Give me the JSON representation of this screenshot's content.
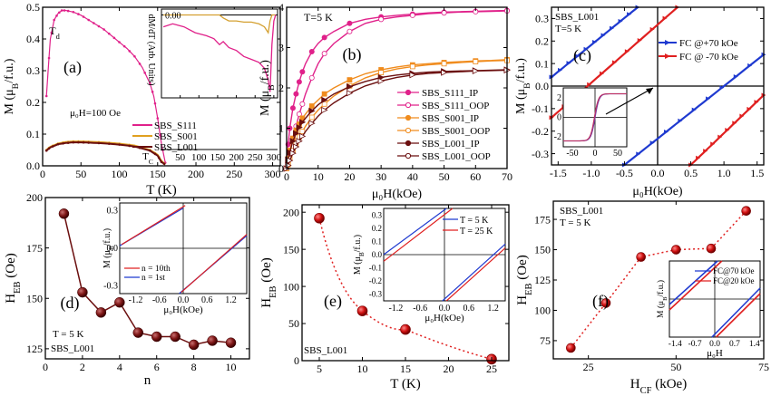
{
  "chart_data": [
    {
      "type": "line",
      "panel_label": "(a)",
      "xlabel": "T (K)",
      "ylabel": "M (μ_B/f.u.)",
      "xlim": [
        0,
        310
      ],
      "ylim": [
        0,
        0.5
      ],
      "xticks": [
        "0",
        "50",
        "100",
        "150",
        "200",
        "250",
        "300"
      ],
      "yticks": [
        "0.0",
        "0.1",
        "0.2",
        "0.3",
        "0.4",
        "0.5"
      ],
      "annotations": [
        "T_d",
        "μ₀H=100 Oe",
        "T_C"
      ],
      "legend": [
        "SBS_S111",
        "SBS_S001",
        "SBS_L001"
      ],
      "series": [
        {
          "name": "SBS_S111",
          "color": "#e0218a",
          "x": [
            5,
            10,
            15,
            20,
            25,
            30,
            40,
            50,
            60,
            70,
            80,
            90,
            100,
            110,
            120,
            130,
            140,
            145,
            150,
            155,
            160
          ],
          "y": [
            0.22,
            0.4,
            0.46,
            0.48,
            0.49,
            0.49,
            0.485,
            0.475,
            0.46,
            0.445,
            0.43,
            0.41,
            0.39,
            0.37,
            0.345,
            0.31,
            0.26,
            0.22,
            0.15,
            0.07,
            0.01
          ]
        },
        {
          "name": "SBS_S001",
          "color": "#e0a020",
          "x": [
            5,
            10,
            20,
            30,
            40,
            50,
            60,
            80,
            100,
            120,
            140,
            150,
            155,
            160
          ],
          "y": [
            0.05,
            0.06,
            0.07,
            0.075,
            0.077,
            0.077,
            0.076,
            0.074,
            0.07,
            0.064,
            0.05,
            0.035,
            0.015,
            0.005
          ]
        },
        {
          "name": "SBS_L001",
          "color": "#6b0f0f",
          "x": [
            5,
            10,
            20,
            30,
            40,
            50,
            60,
            80,
            100,
            120,
            140,
            150,
            155,
            160
          ],
          "y": [
            0.048,
            0.058,
            0.068,
            0.072,
            0.074,
            0.074,
            0.073,
            0.071,
            0.067,
            0.061,
            0.048,
            0.032,
            0.012,
            0.004
          ]
        }
      ],
      "inset": {
        "ylabel": "dM/dT (Arb. Units)",
        "xticks": [
          "50",
          "100",
          "150",
          "200",
          "250",
          "300"
        ],
        "yticks": [
          "0.00"
        ],
        "series_x": [
          5,
          30,
          60,
          90,
          120,
          140,
          155,
          165,
          180,
          200,
          220,
          240,
          260,
          275,
          285,
          290,
          295,
          300,
          305
        ],
        "S111": [
          -0.2,
          -0.15,
          -0.2,
          -0.3,
          -0.35,
          -0.4,
          -0.5,
          -0.45,
          -0.55,
          -0.6,
          -0.7,
          -0.75,
          -0.8,
          -0.9,
          -1.1,
          -1.3,
          -0.5,
          -0.1,
          0
        ],
        "others": [
          0,
          0,
          0,
          0,
          0,
          0,
          0,
          -0.05,
          -0.1,
          -0.1,
          -0.12,
          -0.12,
          -0.15,
          -0.2,
          -0.3,
          -0.1,
          0,
          0,
          0
        ]
      }
    },
    {
      "type": "line",
      "panel_label": "(b)",
      "annotation": "T=5 K",
      "xlabel": "μ₀H(kOe)",
      "ylabel": "M (μ_B/f.u.)",
      "xlim": [
        0,
        70
      ],
      "ylim": [
        0,
        4
      ],
      "xticks": [
        "0",
        "10",
        "20",
        "30",
        "40",
        "50",
        "60",
        "70"
      ],
      "yticks": [
        "0",
        "1",
        "2",
        "3",
        "4"
      ],
      "x": [
        0,
        0.5,
        1,
        2,
        3,
        4,
        5,
        6,
        8,
        10,
        12,
        15,
        20,
        25,
        30,
        35,
        40,
        45,
        50,
        55,
        60,
        65,
        70
      ],
      "series": [
        {
          "name": "SBS_S111_IP",
          "color": "#e0218a",
          "filled": true,
          "y": [
            0,
            0.6,
            1.0,
            1.5,
            1.85,
            2.15,
            2.4,
            2.6,
            2.9,
            3.1,
            3.25,
            3.4,
            3.6,
            3.7,
            3.76,
            3.8,
            3.83,
            3.86,
            3.88,
            3.89,
            3.9,
            3.91,
            3.92
          ]
        },
        {
          "name": "SBS_S111_OOP",
          "color": "#e0218a",
          "filled": false,
          "y": [
            0,
            0.2,
            0.4,
            0.75,
            1.05,
            1.35,
            1.6,
            1.85,
            2.25,
            2.6,
            2.85,
            3.1,
            3.4,
            3.6,
            3.7,
            3.76,
            3.8,
            3.84,
            3.86,
            3.88,
            3.89,
            3.9,
            3.91
          ]
        },
        {
          "name": "SBS_S001_IP",
          "color": "#f08c1e",
          "filled": true,
          "y": [
            0,
            0.25,
            0.45,
            0.75,
            0.95,
            1.1,
            1.25,
            1.35,
            1.55,
            1.7,
            1.85,
            2.0,
            2.2,
            2.35,
            2.45,
            2.52,
            2.57,
            2.6,
            2.63,
            2.65,
            2.67,
            2.68,
            2.7
          ]
        },
        {
          "name": "SBS_S001_OOP",
          "color": "#f08c1e",
          "filled": false,
          "y": [
            0,
            0.1,
            0.25,
            0.45,
            0.62,
            0.78,
            0.92,
            1.05,
            1.27,
            1.45,
            1.6,
            1.8,
            2.05,
            2.25,
            2.38,
            2.47,
            2.53,
            2.57,
            2.6,
            2.63,
            2.65,
            2.67,
            2.68
          ]
        },
        {
          "name": "SBS_L001_IP",
          "color": "#6b0f0f",
          "filled": true,
          "y": [
            0,
            0.22,
            0.4,
            0.68,
            0.87,
            1.02,
            1.15,
            1.25,
            1.43,
            1.58,
            1.7,
            1.85,
            2.03,
            2.16,
            2.26,
            2.32,
            2.36,
            2.39,
            2.41,
            2.42,
            2.43,
            2.44,
            2.45
          ]
        },
        {
          "name": "SBS_L001_OOP",
          "color": "#6b0f0f",
          "filled": false,
          "y": [
            0,
            0.08,
            0.2,
            0.38,
            0.54,
            0.68,
            0.8,
            0.92,
            1.12,
            1.3,
            1.45,
            1.63,
            1.87,
            2.05,
            2.17,
            2.26,
            2.32,
            2.36,
            2.38,
            2.4,
            2.42,
            2.43,
            2.44
          ]
        }
      ]
    },
    {
      "type": "line",
      "panel_label": "(c)",
      "annotation": [
        "SBS_L001",
        "T=5 K"
      ],
      "xlabel": "μ₀H(kOe)",
      "ylabel": "M (μ_B/f.u.)",
      "xlim": [
        -1.6,
        1.6
      ],
      "ylim": [
        -0.35,
        0.35
      ],
      "xticks": [
        "-1.5",
        "-1.0",
        "-0.5",
        "0.0",
        "0.5",
        "1.0",
        "1.5"
      ],
      "yticks": [
        "-0.3",
        "-0.2",
        "-0.1",
        "0.0",
        "0.1",
        "0.2",
        "0.3"
      ],
      "legend": [
        "FC @+70 kOe",
        "FC @ -70 kOe"
      ],
      "series": [
        {
          "name": "FC @+70 kOe",
          "color": "#1f3ad0",
          "branches": [
            {
              "x": [
                -1.6,
                -0.3
              ],
              "y": [
                0.04,
                0.35
              ]
            },
            {
              "x": [
                -0.5,
                1.6
              ],
              "y": [
                -0.35,
                0.14
              ]
            }
          ]
        },
        {
          "name": "FC @ -70 kOe",
          "color": "#e02020",
          "branches": [
            {
              "x": [
                -1.6,
                0.3
              ],
              "y": [
                -0.14,
                0.35
              ]
            },
            {
              "x": [
                0.5,
                1.6
              ],
              "y": [
                -0.35,
                -0.04
              ]
            }
          ]
        }
      ],
      "inset": {
        "xticks": [
          "-50",
          "0",
          "50"
        ],
        "yticks": [
          "-2",
          "0",
          "2"
        ]
      }
    },
    {
      "type": "scatter",
      "panel_label": "(d)",
      "annotation": [
        "T = 5 K",
        "SBS_L001"
      ],
      "xlabel": "n",
      "ylabel": "H_EB (Oe)",
      "xlim": [
        0,
        11
      ],
      "ylim": [
        120,
        200
      ],
      "xticks": [
        "0",
        "2",
        "4",
        "6",
        "8",
        "10"
      ],
      "yticks": [
        "125",
        "150",
        "175",
        "200"
      ],
      "x": [
        1,
        2,
        3,
        4,
        5,
        6,
        7,
        8,
        9,
        10
      ],
      "y": [
        192,
        153,
        143,
        148,
        133,
        131,
        131,
        127,
        129,
        128
      ],
      "inset": {
        "xlabel": "μ₀H(kOe)",
        "ylabel": "M (μ_B/f.u.)",
        "xticks": [
          "-1.2",
          "-0.6",
          "0.0",
          "0.6",
          "1.2"
        ],
        "yticks": [
          "-0.3",
          "0.0",
          "0.3"
        ],
        "legend": [
          "n = 10th",
          "n = 1st"
        ]
      }
    },
    {
      "type": "scatter",
      "panel_label": "(e)",
      "annotation": "SBS_L001",
      "xlabel": "T (K)",
      "ylabel": "H_EB (Oe)",
      "xlim": [
        3,
        27
      ],
      "ylim": [
        0,
        210
      ],
      "xticks": [
        "5",
        "10",
        "15",
        "20",
        "25"
      ],
      "yticks": [
        "0",
        "50",
        "100",
        "150",
        "200"
      ],
      "x": [
        5,
        10,
        15,
        25
      ],
      "y": [
        192,
        67,
        42,
        2
      ],
      "inset": {
        "xlabel": "μ₀H(kOe)",
        "ylabel": "M (μ_B/f.u.)",
        "xticks": [
          "-1.2",
          "-0.6",
          "0.0",
          "0.6",
          "1.2"
        ],
        "yticks": [
          "-0.3",
          "-0.2",
          "-0.1",
          "0.0",
          "0.1",
          "0.2",
          "0.3"
        ],
        "legend": [
          "T = 5 K",
          "T = 25 K"
        ]
      }
    },
    {
      "type": "scatter",
      "panel_label": "(f)",
      "annotation": [
        "SBS_L001",
        "T = 5 K"
      ],
      "xlabel": "H_CF (kOe)",
      "ylabel": "H_EB (Oe)",
      "xlim": [
        15,
        75
      ],
      "ylim": [
        60,
        190
      ],
      "xticks": [
        "25",
        "50",
        "75"
      ],
      "yticks": [
        "75",
        "100",
        "125",
        "150",
        "175"
      ],
      "x": [
        20,
        30,
        40,
        50,
        60,
        70
      ],
      "y": [
        69,
        106,
        144,
        150,
        151,
        182
      ],
      "inset": {
        "xlabel": "μ₀H",
        "ylabel": "M (μ_B/f.u.)",
        "xticks": [
          "-1.4",
          "-0.7",
          "0.0",
          "0.7",
          "1.4"
        ],
        "legend": [
          "FC@70 kOe",
          "FC@20 kOe"
        ]
      }
    }
  ]
}
